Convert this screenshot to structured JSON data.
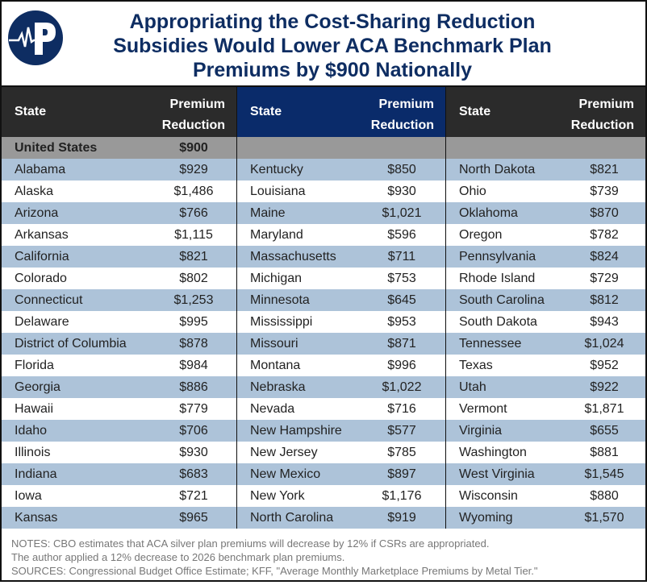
{
  "title": [
    "Appropriating the Cost-Sharing Reduction",
    "Subsidies Would Lower ACA Benchmark Plan",
    "Premiums by $900 Nationally"
  ],
  "logo": {
    "letter": "P",
    "color": "#0e2d62"
  },
  "header": {
    "state": "State",
    "premium_line1": "Premium",
    "premium_line2": "Reduction"
  },
  "national": {
    "state": "United States",
    "value": "$900"
  },
  "colors": {
    "header_dark": "#2b2b2b",
    "header_blue": "#0a2b6a",
    "national_row": "#999999",
    "stripe": "#adc3d9",
    "title": "#0e2d62"
  },
  "columns": [
    [
      [
        "Alabama",
        "$929"
      ],
      [
        "Alaska",
        "$1,486"
      ],
      [
        "Arizona",
        "$766"
      ],
      [
        "Arkansas",
        "$1,115"
      ],
      [
        "California",
        "$821"
      ],
      [
        "Colorado",
        "$802"
      ],
      [
        "Connecticut",
        "$1,253"
      ],
      [
        "Delaware",
        "$995"
      ],
      [
        "District of Columbia",
        "$878"
      ],
      [
        "Florida",
        "$984"
      ],
      [
        "Georgia",
        "$886"
      ],
      [
        "Hawaii",
        "$779"
      ],
      [
        "Idaho",
        "$706"
      ],
      [
        "Illinois",
        "$930"
      ],
      [
        "Indiana",
        "$683"
      ],
      [
        "Iowa",
        "$721"
      ],
      [
        "Kansas",
        "$965"
      ]
    ],
    [
      [
        "Kentucky",
        "$850"
      ],
      [
        "Louisiana",
        "$930"
      ],
      [
        "Maine",
        "$1,021"
      ],
      [
        "Maryland",
        "$596"
      ],
      [
        "Massachusetts",
        "$711"
      ],
      [
        "Michigan",
        "$753"
      ],
      [
        "Minnesota",
        "$645"
      ],
      [
        "Mississippi",
        "$953"
      ],
      [
        "Missouri",
        "$871"
      ],
      [
        "Montana",
        "$996"
      ],
      [
        "Nebraska",
        "$1,022"
      ],
      [
        "Nevada",
        "$716"
      ],
      [
        "New Hampshire",
        "$577"
      ],
      [
        "New Jersey",
        "$785"
      ],
      [
        "New Mexico",
        "$897"
      ],
      [
        "New York",
        "$1,176"
      ],
      [
        "North Carolina",
        "$919"
      ]
    ],
    [
      [
        "North Dakota",
        "$821"
      ],
      [
        "Ohio",
        "$739"
      ],
      [
        "Oklahoma",
        "$870"
      ],
      [
        "Oregon",
        "$782"
      ],
      [
        "Pennsylvania",
        "$824"
      ],
      [
        "Rhode Island",
        "$729"
      ],
      [
        "South Carolina",
        "$812"
      ],
      [
        "South Dakota",
        "$943"
      ],
      [
        "Tennessee",
        "$1,024"
      ],
      [
        "Texas",
        "$952"
      ],
      [
        "Utah",
        "$922"
      ],
      [
        "Vermont",
        "$1,871"
      ],
      [
        "Virginia",
        "$655"
      ],
      [
        "Washington",
        "$881"
      ],
      [
        "West Virginia",
        "$1,545"
      ],
      [
        "Wisconsin",
        "$880"
      ],
      [
        "Wyoming",
        "$1,570"
      ]
    ]
  ],
  "notes": [
    "NOTES: CBO estimates that ACA silver plan premiums will decrease by 12% if CSRs are appropriated.",
    "The author applied a 12% decrease to 2026 benchmark plan premiums.",
    "SOURCES: Congressional Budget Office Estimate;  KFF, \"Average Monthly Marketplace Premiums by Metal Tier.\""
  ]
}
